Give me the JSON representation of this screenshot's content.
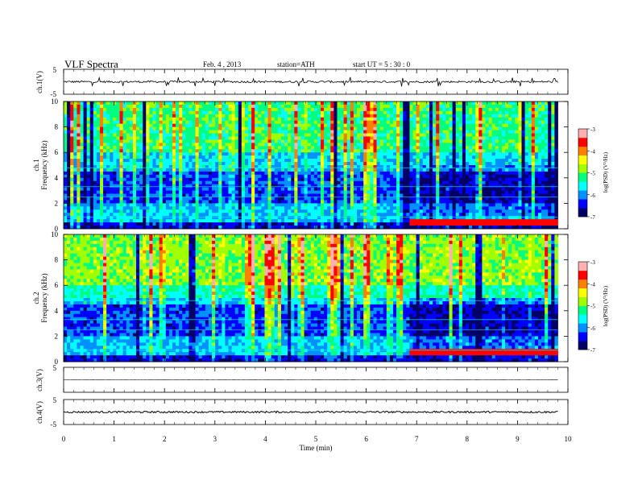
{
  "header": {
    "title": "VLF  Spectra",
    "date": "Feb. 4  , 2013",
    "station": "station=ATH",
    "start_ut": "start  UT  =    5  : 30 : 0"
  },
  "colors": {
    "colormap": [
      "#000066",
      "#0000ff",
      "#0090ff",
      "#00ffff",
      "#00ff80",
      "#a0ff00",
      "#ffff00",
      "#ff8000",
      "#ff0000",
      "#ffb0b0"
    ],
    "trace": "#000000",
    "frame": "#000000"
  },
  "chart_data": [
    {
      "type": "line",
      "panel": "ch1-waveform",
      "ylabel": "ch.1(V)",
      "ylim": [
        -5,
        5
      ],
      "yticks": [
        "5",
        "-5"
      ],
      "baseline": 0,
      "noise_amplitude": 0.4,
      "spike_amplitude": 1.5
    },
    {
      "type": "heatmap",
      "panel": "ch1-spectrogram",
      "ylabel_top": "ch.1",
      "ylabel": "Frequency  (kHz)",
      "ylim": [
        0,
        10
      ],
      "yticks": [
        "0",
        "2",
        "4",
        "6",
        "8",
        "10"
      ],
      "data_end_min": 9.8,
      "colorbar": {
        "label": "log(PSD) (V²/Hz)",
        "range": [
          -7,
          -3
        ],
        "ticks": [
          "-3",
          "-4",
          "-5",
          "-6",
          "-7"
        ]
      },
      "red_band": {
        "t_start_min": 6.8,
        "f_khz": [
          0.3,
          0.7
        ]
      }
    },
    {
      "type": "heatmap",
      "panel": "ch2-spectrogram",
      "ylabel_top": "ch.2",
      "ylabel": "Frequency  (kHz)",
      "ylim": [
        0,
        10
      ],
      "yticks": [
        "0",
        "2",
        "4",
        "6",
        "8",
        "10"
      ],
      "data_end_min": 9.8,
      "colorbar": {
        "label": "log(PSD) (V²/Hz)",
        "range": [
          -7,
          -3
        ],
        "ticks": [
          "-3",
          "-4",
          "-5",
          "-6",
          "-7"
        ]
      },
      "red_band": {
        "t_start_min": 6.8,
        "f_khz": [
          0.6,
          0.9
        ]
      }
    },
    {
      "type": "line",
      "panel": "ch3-waveform",
      "ylabel": "ch.3(V)",
      "ylim": [
        -5,
        5
      ],
      "yticks": [
        "5",
        "-5"
      ],
      "baseline": 0,
      "noise_amplitude": 0.05
    },
    {
      "type": "line",
      "panel": "ch4-waveform",
      "ylabel": "ch.4(V)",
      "ylim": [
        -5,
        5
      ],
      "yticks": [
        "5",
        "-5"
      ],
      "baseline": 0,
      "noise_amplitude": 0.35
    }
  ],
  "x_axis": {
    "xlabel": "Time  (min)",
    "xlim": [
      0,
      10
    ],
    "ticks": [
      "0",
      "1",
      "2",
      "3",
      "4",
      "5",
      "6",
      "7",
      "8",
      "9",
      "10"
    ]
  }
}
